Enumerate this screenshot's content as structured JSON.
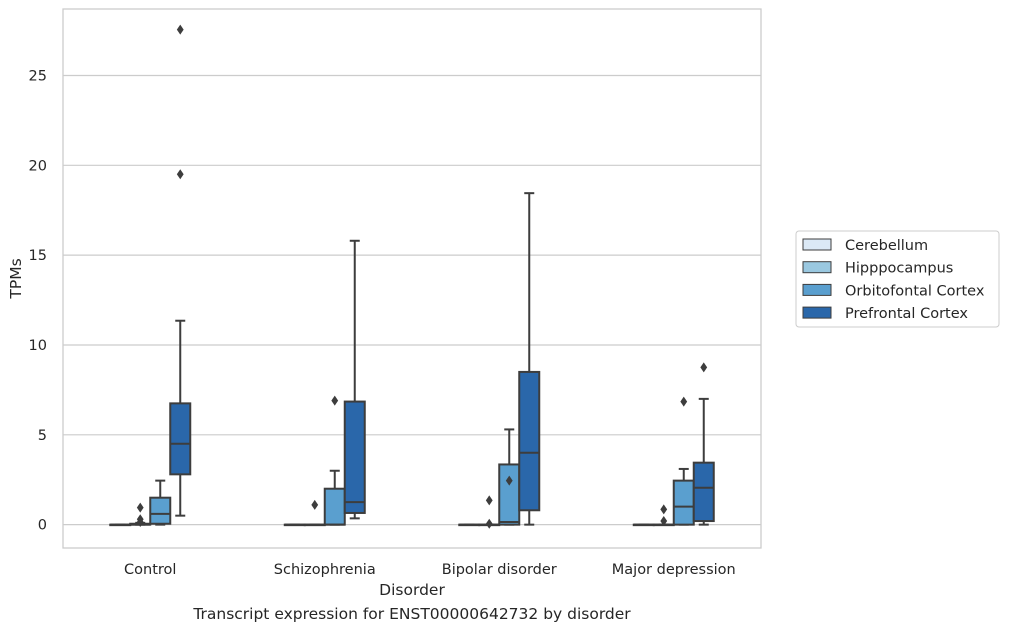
{
  "caption": "Transcript expression for ENST00000642732 by disorder",
  "chart_data": {
    "type": "box",
    "xlabel": "Disorder",
    "ylabel": "TPMs",
    "ylim": [
      -1.3,
      28.7
    ],
    "yticks": [
      0,
      5,
      10,
      15,
      20,
      25
    ],
    "grid": "horizontal",
    "legend_placement": "right",
    "categories": [
      "Control",
      "Schizophrenia",
      "Bipolar disorder",
      "Major depression"
    ],
    "series": [
      {
        "name": "Cerebellum",
        "color": "#dbe9f6",
        "boxes": [
          {
            "whisker_low": 0,
            "q1": 0,
            "median": 0,
            "q3": 0,
            "whisker_high": 0,
            "outliers": []
          },
          {
            "whisker_low": 0,
            "q1": 0,
            "median": 0,
            "q3": 0,
            "whisker_high": 0,
            "outliers": []
          },
          {
            "whisker_low": 0,
            "q1": 0,
            "median": 0,
            "q3": 0,
            "whisker_high": 0,
            "outliers": []
          },
          {
            "whisker_low": 0,
            "q1": 0,
            "median": 0,
            "q3": 0,
            "whisker_high": 0,
            "outliers": []
          }
        ]
      },
      {
        "name": "Hipppocampus",
        "color": "#9ac8e0",
        "boxes": [
          {
            "whisker_low": 0,
            "q1": 0,
            "median": 0,
            "q3": 0.05,
            "whisker_high": 0.1,
            "outliers": [
              0.95,
              0.3,
              0.15
            ]
          },
          {
            "whisker_low": 0,
            "q1": 0,
            "median": 0,
            "q3": 0,
            "whisker_high": 0,
            "outliers": [
              1.1
            ]
          },
          {
            "whisker_low": 0,
            "q1": 0,
            "median": 0,
            "q3": 0,
            "whisker_high": 0,
            "outliers": [
              1.35,
              0.05
            ]
          },
          {
            "whisker_low": 0,
            "q1": 0,
            "median": 0,
            "q3": 0,
            "whisker_high": 0,
            "outliers": [
              0.85,
              0.2
            ]
          }
        ]
      },
      {
        "name": "Orbitofontal Cortex",
        "color": "#5a9fcf",
        "boxes": [
          {
            "whisker_low": 0,
            "q1": 0.05,
            "median": 0.6,
            "q3": 1.5,
            "whisker_high": 2.45,
            "outliers": []
          },
          {
            "whisker_low": 0,
            "q1": 0,
            "median": 0,
            "q3": 2.0,
            "whisker_high": 3.0,
            "outliers": [
              6.9
            ]
          },
          {
            "whisker_low": 0,
            "q1": 0,
            "median": 0.15,
            "q3": 3.35,
            "whisker_high": 5.3,
            "outliers": [
              2.45
            ]
          },
          {
            "whisker_low": 0,
            "q1": 0,
            "median": 1.0,
            "q3": 2.45,
            "whisker_high": 3.1,
            "outliers": [
              6.85
            ]
          }
        ]
      },
      {
        "name": "Prefrontal Cortex",
        "color": "#2a67aa",
        "boxes": [
          {
            "whisker_low": 0.5,
            "q1": 2.8,
            "median": 4.5,
            "q3": 6.75,
            "whisker_high": 11.35,
            "outliers": [
              27.55,
              19.5
            ]
          },
          {
            "whisker_low": 0.35,
            "q1": 0.65,
            "median": 1.25,
            "q3": 6.85,
            "whisker_high": 15.8,
            "outliers": []
          },
          {
            "whisker_low": 0,
            "q1": 0.8,
            "median": 4.0,
            "q3": 8.5,
            "whisker_high": 18.45,
            "outliers": []
          },
          {
            "whisker_low": 0,
            "q1": 0.2,
            "median": 2.05,
            "q3": 3.45,
            "whisker_high": 7.0,
            "outliers": [
              8.75
            ]
          }
        ]
      }
    ]
  }
}
